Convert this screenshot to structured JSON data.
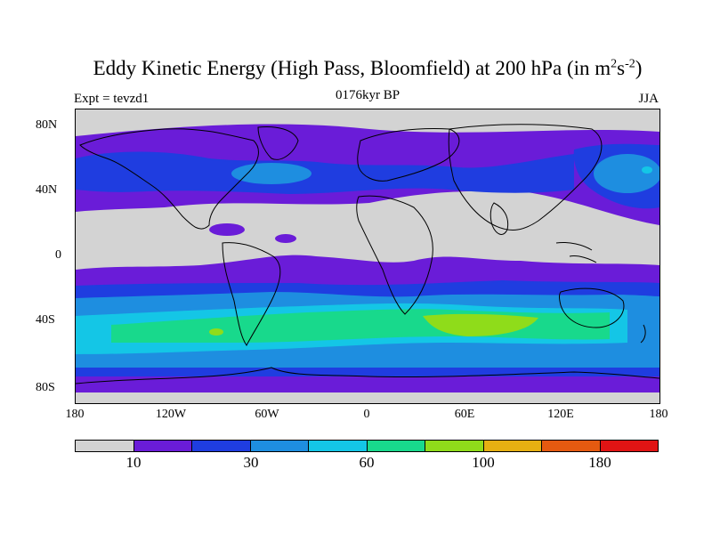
{
  "figure": {
    "title_main": "Eddy Kinetic Energy (High Pass, Bloomfield) at 200 hPa (in m",
    "title_sup1": "2",
    "title_mid": "s",
    "title_sup2": "-2",
    "title_end": ")",
    "subtitle_center": "0176kyr BP",
    "subtitle_left": "Expt = tevzd1",
    "subtitle_right": "JJA"
  },
  "map": {
    "lat_labels": [
      "80N",
      "40N",
      "0",
      "40S",
      "80S"
    ],
    "lon_labels": [
      "180",
      "120W",
      "60W",
      "0",
      "60E",
      "120E",
      "180"
    ]
  },
  "colorbar": {
    "colors": [
      "#d3d3d3",
      "#6a1cd8",
      "#1f3de0",
      "#1e8ee0",
      "#14c6e6",
      "#18d98c",
      "#8fdc1a",
      "#e6b012",
      "#e55a10",
      "#e01414"
    ],
    "labels": [
      "10",
      "30",
      "60",
      "100",
      "180"
    ]
  },
  "palette": {
    "land_outline": "#000000",
    "background": "#d3d3d3"
  }
}
